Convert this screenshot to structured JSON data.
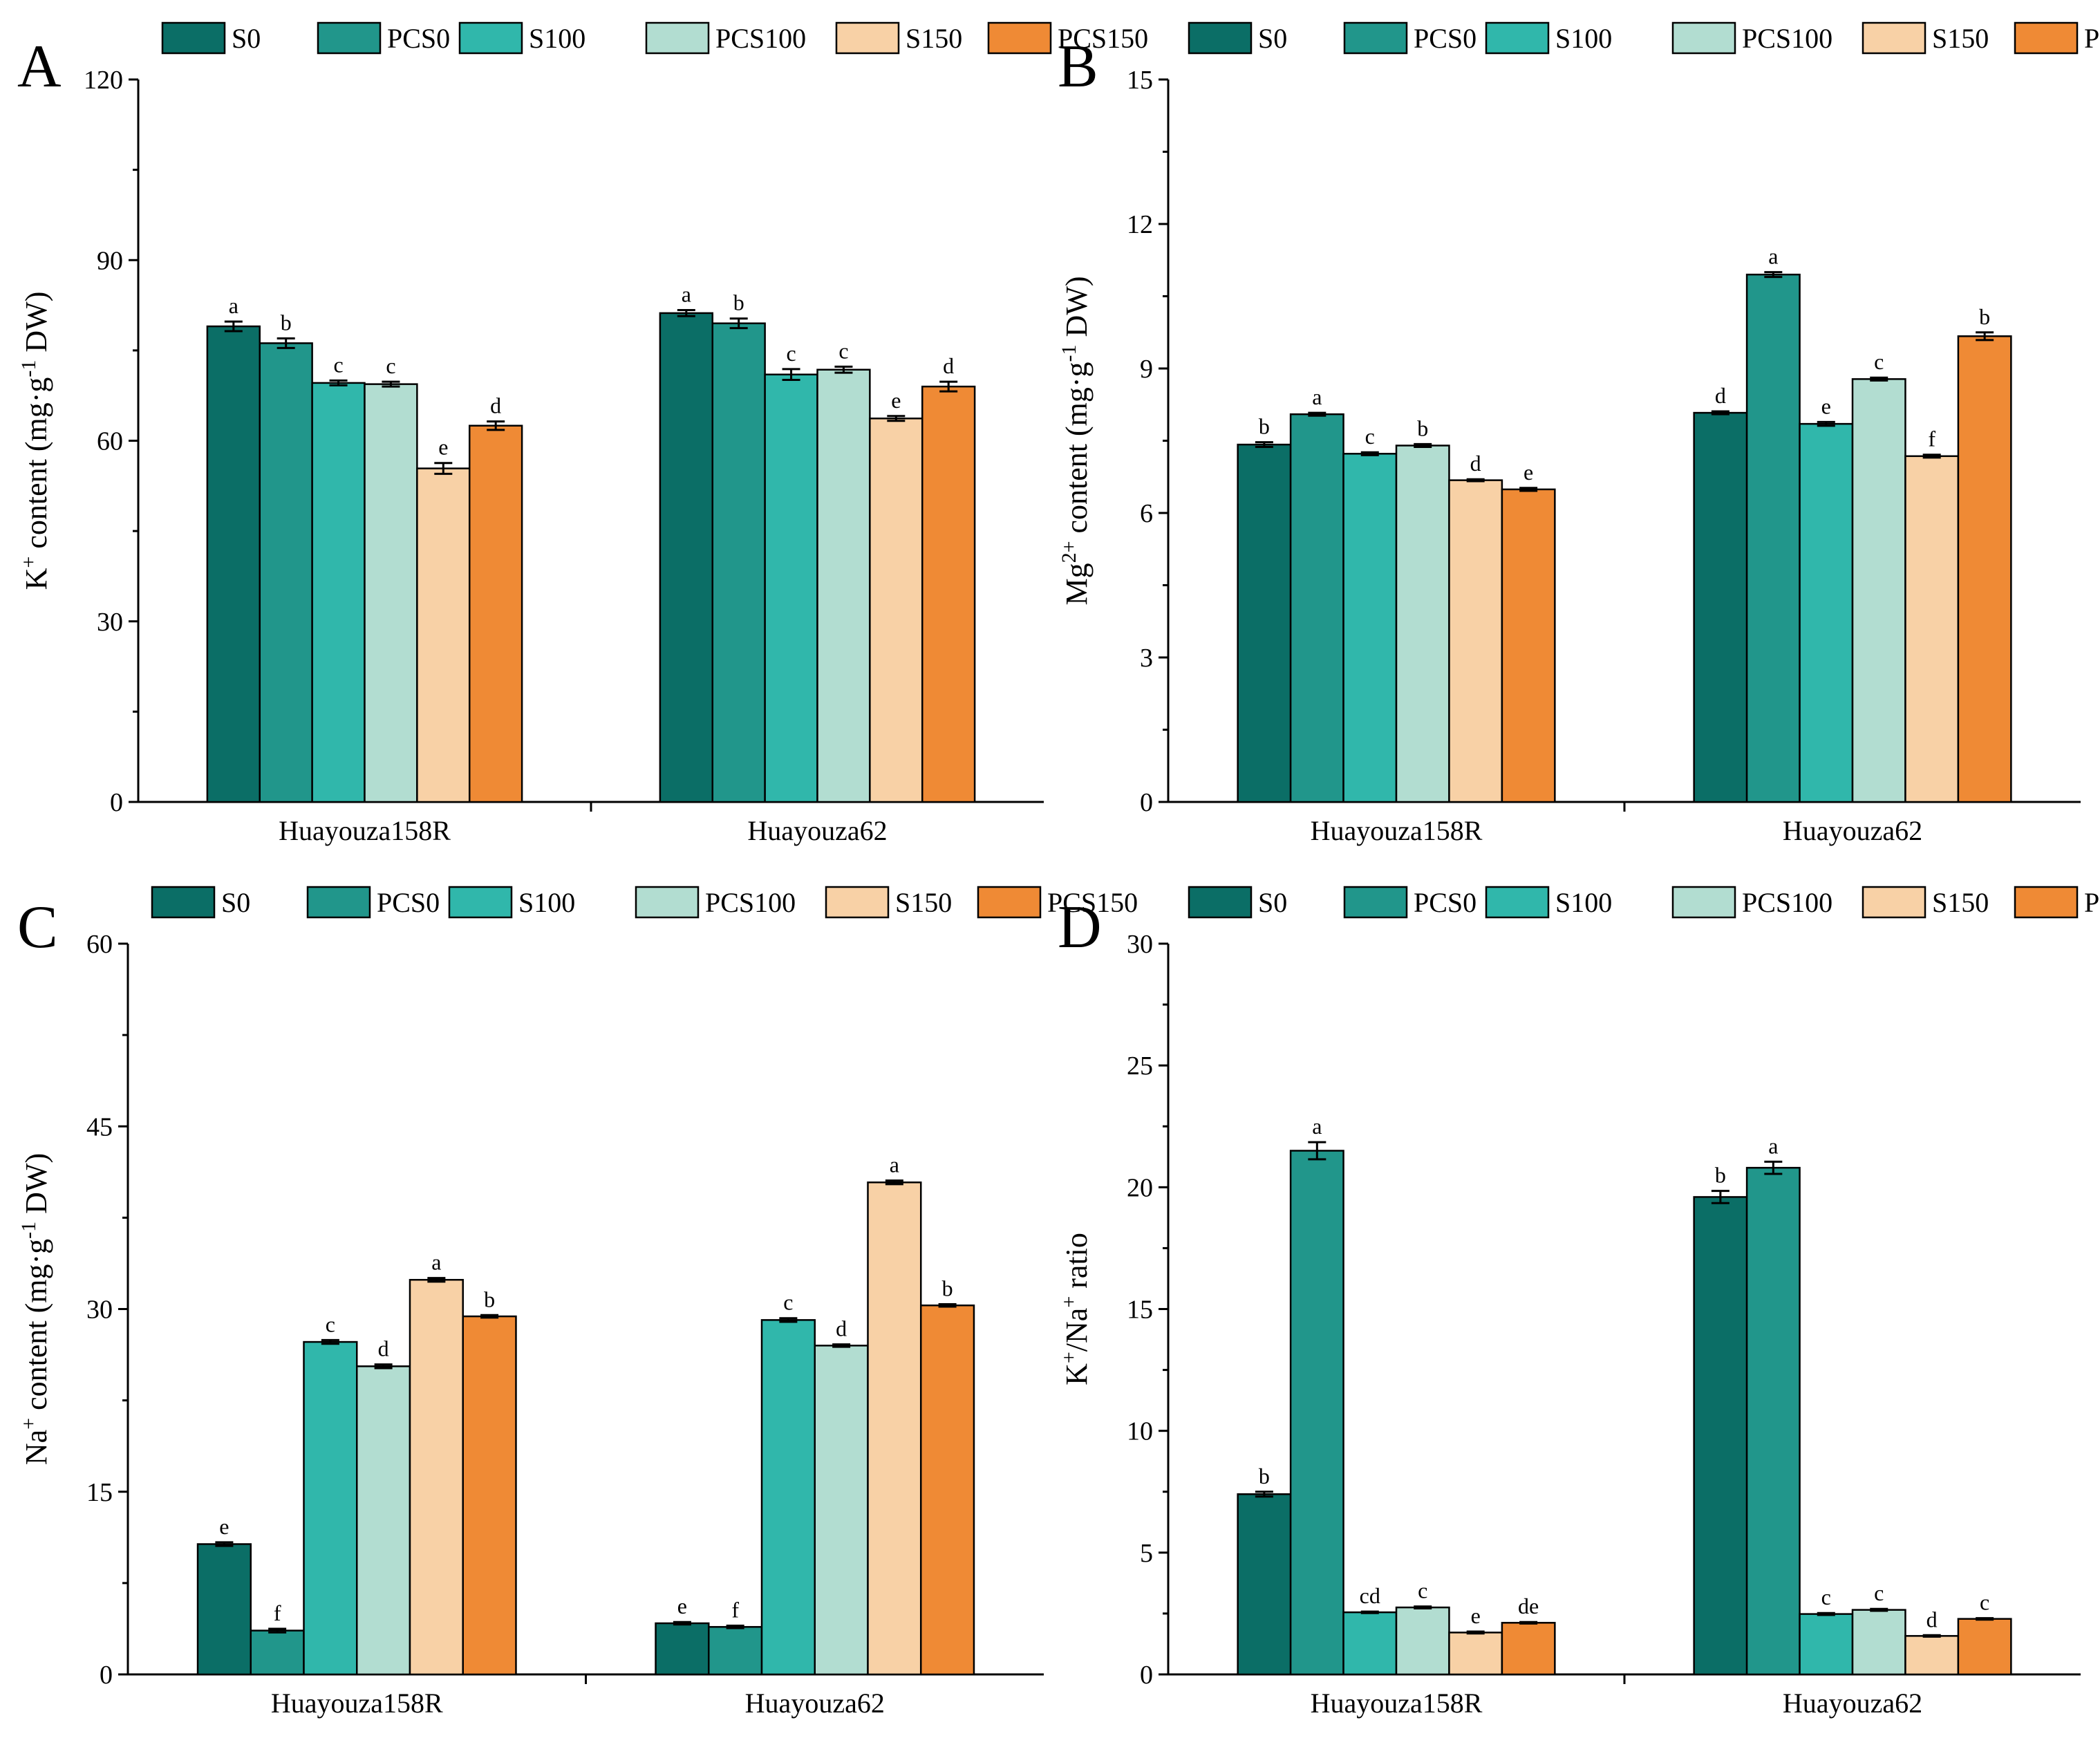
{
  "chart_data": [
    {
      "type": "bar",
      "panel": "A",
      "ylabel_main": "K",
      "ylabel_sup": "+",
      "ylabel_rest": " content (mg·g",
      "ylabel_sup2": "-1",
      "ylabel_end": " DW)",
      "ylim": [
        0,
        120
      ],
      "yticks": [
        0,
        30,
        60,
        90,
        120
      ],
      "categories": [
        "Huayouza158R",
        "Huayouza62"
      ],
      "series": [
        {
          "name": "S0",
          "values": [
            79.0,
            81.2
          ],
          "errors": [
            0.8,
            0.5
          ],
          "letters": [
            "a",
            "a"
          ]
        },
        {
          "name": "PCS0",
          "values": [
            76.2,
            79.5
          ],
          "errors": [
            0.8,
            0.8
          ],
          "letters": [
            "b",
            "b"
          ]
        },
        {
          "name": "S100",
          "values": [
            69.6,
            71.0
          ],
          "errors": [
            0.4,
            0.9
          ],
          "letters": [
            "c",
            "c"
          ]
        },
        {
          "name": "PCS100",
          "values": [
            69.4,
            71.8
          ],
          "errors": [
            0.4,
            0.5
          ],
          "letters": [
            "c",
            "c"
          ]
        },
        {
          "name": "S150",
          "values": [
            55.4,
            63.7
          ],
          "errors": [
            0.9,
            0.4
          ],
          "letters": [
            "e",
            "e"
          ]
        },
        {
          "name": "PCS150",
          "values": [
            62.5,
            69.0
          ],
          "errors": [
            0.7,
            0.8
          ],
          "letters": [
            "d",
            "d"
          ]
        }
      ]
    },
    {
      "type": "bar",
      "panel": "B",
      "ylabel_main": "Mg",
      "ylabel_sup": "2+",
      "ylabel_rest": " content (mg·g",
      "ylabel_sup2": "-1",
      "ylabel_end": " DW)",
      "ylim": [
        0,
        15
      ],
      "yticks": [
        0,
        3,
        6,
        9,
        12,
        15
      ],
      "categories": [
        "Huayouza158R",
        "Huayouza62"
      ],
      "series": [
        {
          "name": "S0",
          "values": [
            7.42,
            8.08
          ],
          "errors": [
            0.05,
            0.03
          ],
          "letters": [
            "b",
            "d"
          ]
        },
        {
          "name": "PCS0",
          "values": [
            8.05,
            10.95
          ],
          "errors": [
            0.03,
            0.05
          ],
          "letters": [
            "a",
            "a"
          ]
        },
        {
          "name": "S100",
          "values": [
            7.23,
            7.85
          ],
          "errors": [
            0.03,
            0.04
          ],
          "letters": [
            "c",
            "e"
          ]
        },
        {
          "name": "PCS100",
          "values": [
            7.4,
            8.78
          ],
          "errors": [
            0.03,
            0.03
          ],
          "letters": [
            "b",
            "c"
          ]
        },
        {
          "name": "S150",
          "values": [
            6.68,
            7.18
          ],
          "errors": [
            0.02,
            0.03
          ],
          "letters": [
            "d",
            "f"
          ]
        },
        {
          "name": "PCS150",
          "values": [
            6.49,
            9.67
          ],
          "errors": [
            0.03,
            0.08
          ],
          "letters": [
            "e",
            "b"
          ]
        }
      ]
    },
    {
      "type": "bar",
      "panel": "C",
      "ylabel_main": "Na",
      "ylabel_sup": "+",
      "ylabel_rest": " content (mg·g",
      "ylabel_sup2": "-1",
      "ylabel_end": " DW)",
      "ylim": [
        0,
        60
      ],
      "yticks": [
        0,
        15,
        30,
        45,
        60
      ],
      "categories": [
        "Huayouza158R",
        "Huayouza62"
      ],
      "series": [
        {
          "name": "S0",
          "values": [
            10.7,
            4.2
          ],
          "errors": [
            0.15,
            0.1
          ],
          "letters": [
            "e",
            "e"
          ]
        },
        {
          "name": "PCS0",
          "values": [
            3.6,
            3.9
          ],
          "errors": [
            0.15,
            0.1
          ],
          "letters": [
            "f",
            "f"
          ]
        },
        {
          "name": "S100",
          "values": [
            27.3,
            29.1
          ],
          "errors": [
            0.15,
            0.15
          ],
          "letters": [
            "c",
            "c"
          ]
        },
        {
          "name": "PCS100",
          "values": [
            25.3,
            27.0
          ],
          "errors": [
            0.15,
            0.1
          ],
          "letters": [
            "d",
            "d"
          ]
        },
        {
          "name": "S150",
          "values": [
            32.4,
            40.4
          ],
          "errors": [
            0.15,
            0.15
          ],
          "letters": [
            "a",
            "a"
          ]
        },
        {
          "name": "PCS150",
          "values": [
            29.4,
            30.3
          ],
          "errors": [
            0.1,
            0.1
          ],
          "letters": [
            "b",
            "b"
          ]
        }
      ]
    },
    {
      "type": "bar",
      "panel": "D",
      "ylabel_main": "K",
      "ylabel_sup": "+",
      "ylabel_rest": "/Na",
      "ylabel_sup2": "+",
      "ylabel_end": " ratio",
      "ylim": [
        0,
        30
      ],
      "yticks": [
        0,
        5,
        10,
        15,
        20,
        25,
        30
      ],
      "categories": [
        "Huayouza158R",
        "Huayouza62"
      ],
      "series": [
        {
          "name": "S0",
          "values": [
            7.4,
            19.6
          ],
          "errors": [
            0.1,
            0.25
          ],
          "letters": [
            "b",
            "b"
          ]
        },
        {
          "name": "PCS0",
          "values": [
            21.5,
            20.8
          ],
          "errors": [
            0.35,
            0.25
          ],
          "letters": [
            "a",
            "a"
          ]
        },
        {
          "name": "S100",
          "values": [
            2.55,
            2.48
          ],
          "errors": [
            0.03,
            0.04
          ],
          "letters": [
            "cd",
            "c"
          ]
        },
        {
          "name": "PCS100",
          "values": [
            2.75,
            2.65
          ],
          "errors": [
            0.04,
            0.04
          ],
          "letters": [
            "c",
            "c"
          ]
        },
        {
          "name": "S150",
          "values": [
            1.72,
            1.58
          ],
          "errors": [
            0.04,
            0.03
          ],
          "letters": [
            "e",
            "d"
          ]
        },
        {
          "name": "PCS150",
          "values": [
            2.12,
            2.28
          ],
          "errors": [
            0.03,
            0.03
          ],
          "letters": [
            "de",
            "c"
          ]
        }
      ]
    }
  ],
  "colors": {
    "S0": "#0b6e66",
    "PCS0": "#21968b",
    "S100": "#30b7ab",
    "PCS100": "#b2ddd1",
    "S150": "#f8d1a6",
    "PCS150": "#ef8a35"
  }
}
